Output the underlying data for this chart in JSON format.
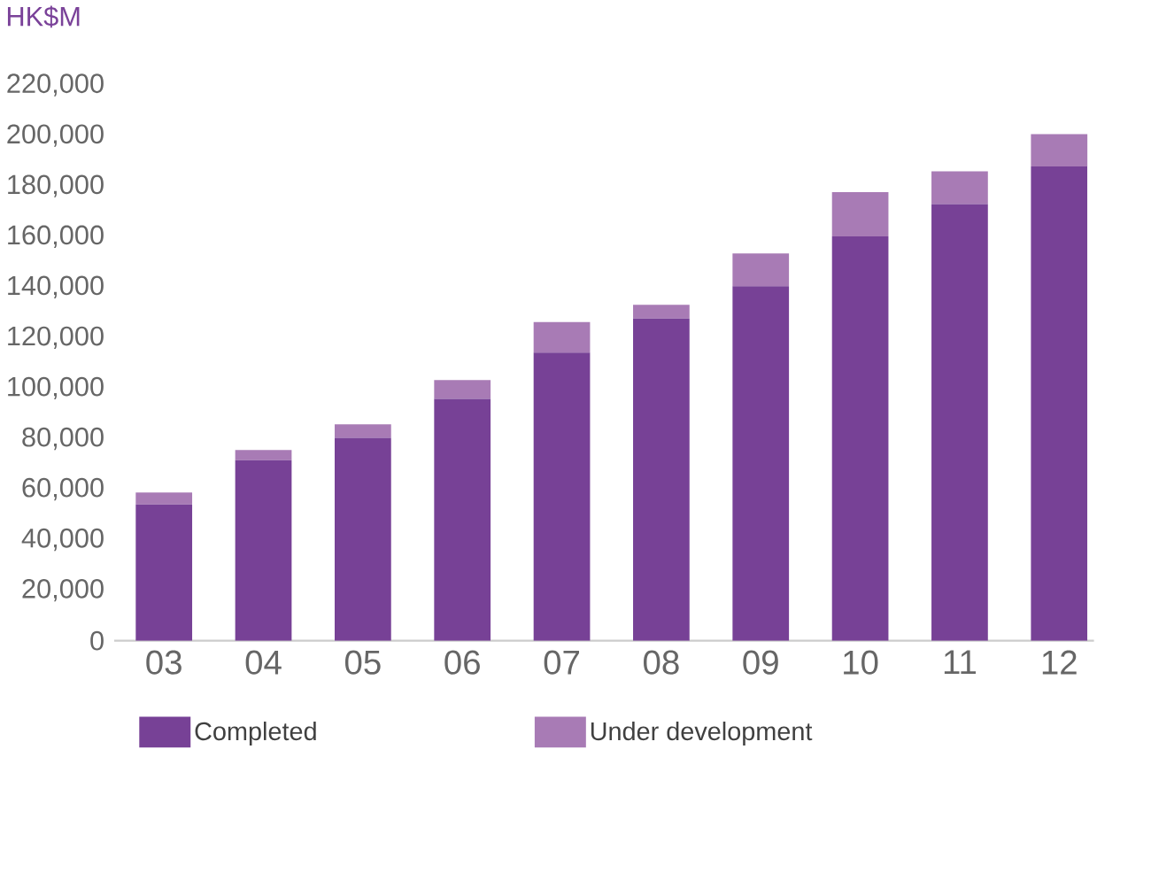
{
  "chart_data": {
    "type": "bar",
    "ylabel": "HK$M",
    "stacked": true,
    "legend": "bottom",
    "grid": false,
    "categories": [
      "03",
      "04",
      "05",
      "06",
      "07",
      "08",
      "09",
      "10",
      "11",
      "12"
    ],
    "series": [
      {
        "name": "Completed",
        "color": "#774196",
        "values": [
          54000,
          71500,
          80300,
          95800,
          114100,
          127600,
          140400,
          160100,
          172900,
          187800
        ]
      },
      {
        "name": "Under development",
        "color": "#a87bb5",
        "values": [
          4700,
          4000,
          5400,
          7400,
          12100,
          5400,
          12900,
          17500,
          12900,
          12800
        ]
      }
    ],
    "ylim": [
      0,
      220000
    ],
    "yticks": [
      {
        "value": 0,
        "label": "0"
      },
      {
        "value": 20000,
        "label": "20,000"
      },
      {
        "value": 40000,
        "label": "40,000"
      },
      {
        "value": 60000,
        "label": "60,000"
      },
      {
        "value": 80000,
        "label": "80,000"
      },
      {
        "value": 100000,
        "label": "100,000"
      },
      {
        "value": 120000,
        "label": "120,000"
      },
      {
        "value": 140000,
        "label": "140,000"
      },
      {
        "value": 160000,
        "label": "160,000"
      },
      {
        "value": 180000,
        "label": "180,000"
      },
      {
        "value": 200000,
        "label": "200,000"
      },
      {
        "value": 220000,
        "label": "220,000"
      }
    ]
  }
}
